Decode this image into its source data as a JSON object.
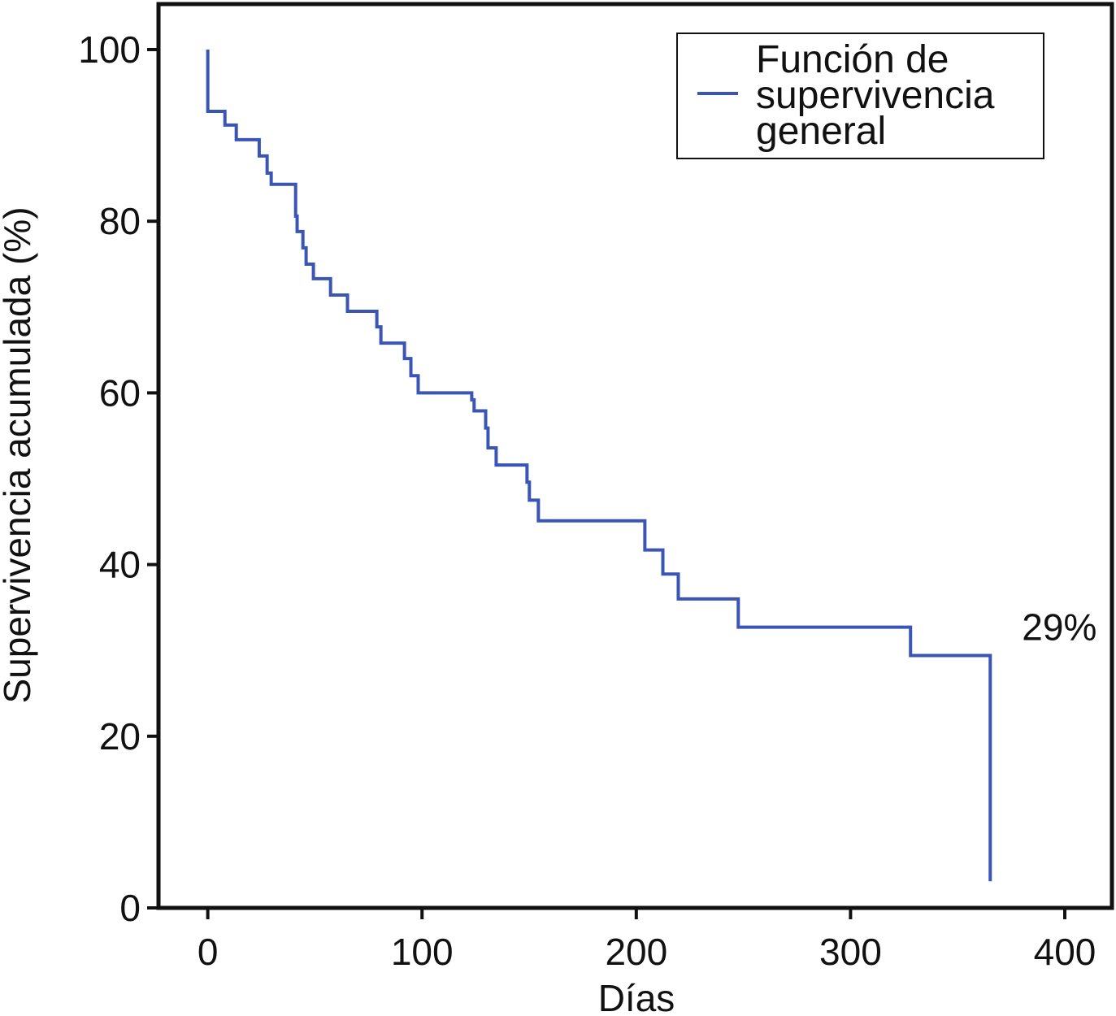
{
  "chart_data": {
    "type": "step",
    "x_label": "Días",
    "y_label": "Supervivencia acumulada (%)",
    "xlim": [
      -23,
      422
    ],
    "ylim": [
      0,
      105.3
    ],
    "xticks": [
      0,
      100,
      200,
      300,
      400
    ],
    "yticks": [
      0,
      20,
      40,
      60,
      80,
      100
    ],
    "series": [
      {
        "name": "Función de supervivencia general",
        "color": "#3a55b4",
        "x": [
          0,
          0,
          8,
          13.3,
          24,
          27.7,
          29.6,
          41,
          41.7,
          44.4,
          45.9,
          49.3,
          57.3,
          65.2,
          78.9,
          80.8,
          91.8,
          94.8,
          98.2,
          123.2,
          124.3,
          129.7,
          130.8,
          134.6,
          149,
          150.1,
          154.3,
          204,
          212.4,
          219.6,
          247.6,
          328,
          365.2
        ],
        "values": [
          100,
          92.8,
          91.2,
          89.5,
          87.6,
          85.6,
          84.3,
          80.6,
          78.8,
          76.9,
          75.0,
          73.3,
          71.4,
          69.5,
          67.7,
          65.8,
          64.0,
          62.0,
          60.0,
          59.2,
          57.9,
          55.9,
          53.6,
          51.6,
          49.6,
          47.5,
          45.1,
          41.7,
          38.9,
          36.0,
          32.7,
          29.4,
          3.1
        ]
      }
    ],
    "annotations": [
      {
        "text": "29%",
        "x": 380,
        "y": 32.7
      }
    ]
  }
}
